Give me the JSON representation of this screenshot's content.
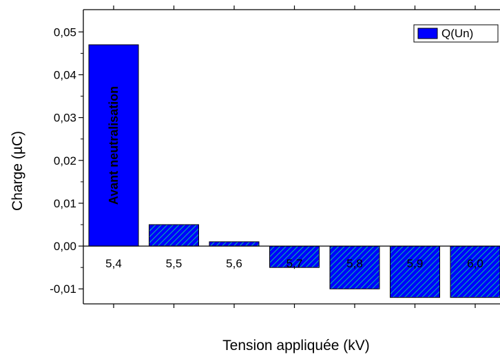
{
  "chart_data": {
    "type": "bar",
    "xlabel": "Tension appliquée (kV)",
    "ylabel": "Charge (µC)",
    "ylim": [
      -0.0135,
      0.0552
    ],
    "yticks": [
      {
        "value": -0.01,
        "label": "-0,01"
      },
      {
        "value": 0.0,
        "label": "0,00"
      },
      {
        "value": 0.01,
        "label": "0,01"
      },
      {
        "value": 0.02,
        "label": "0,02"
      },
      {
        "value": 0.03,
        "label": "0,03"
      },
      {
        "value": 0.04,
        "label": "0,04"
      },
      {
        "value": 0.05,
        "label": "0,05"
      }
    ],
    "categories": [
      "5,4",
      "5,5",
      "5,6",
      "5,7",
      "5,8",
      "5,9",
      "6,0"
    ],
    "series": [
      {
        "name": "Q(Un)",
        "values": [
          0.047,
          0.005,
          0.001,
          -0.005,
          -0.01,
          -0.012,
          -0.012
        ]
      }
    ],
    "bar_annotation": "Avant neutralisation",
    "legend_position": "top-right",
    "grid": false,
    "colors": {
      "bar_fill": "#0000ff",
      "hatch_green": "#00c8a0",
      "hatch_dark": "#000066",
      "axis": "#000000"
    }
  }
}
